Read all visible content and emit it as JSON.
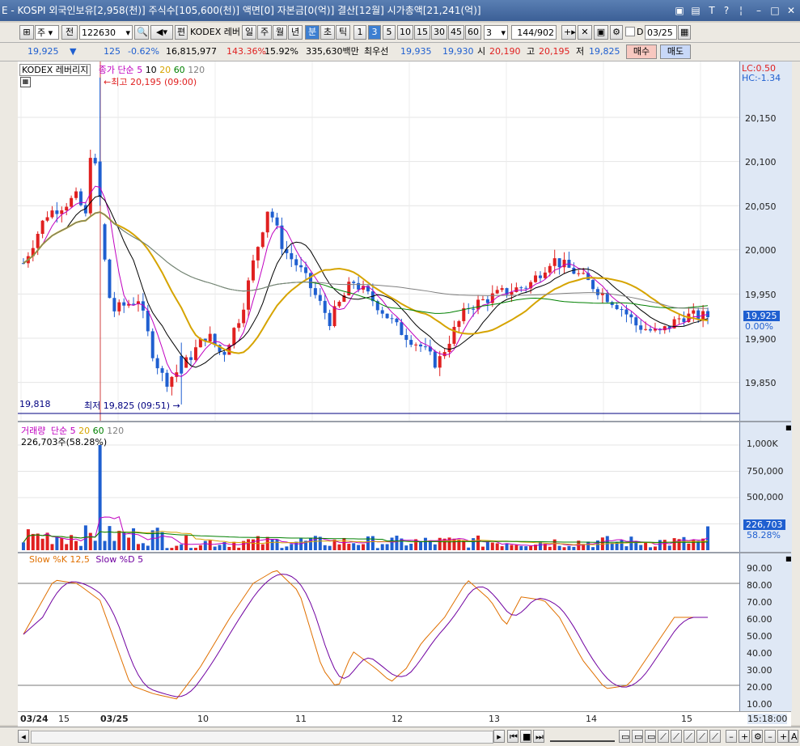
{
  "titlebar": {
    "title": "E - KOSPI 외국인보유[2,958(천)] 주식수[105,600(천)] 액면[0] 자본금[0(억)] 결산[12월] 시가총액[21,241(억)]",
    "icons": [
      "save-icon",
      "chart-icon",
      "font-icon",
      "help-icon",
      "minimize-icon",
      "restore-icon",
      "close-icon"
    ]
  },
  "toolbar": {
    "market": "주",
    "mode": "전",
    "code": "122630",
    "pen_label": "편",
    "name": "KODEX 레버",
    "periods": [
      "일",
      "주",
      "월",
      "년",
      "분",
      "초",
      "틱"
    ],
    "selected_period": "분",
    "intervals": [
      "1",
      "3",
      "5",
      "10",
      "15",
      "30",
      "45",
      "60"
    ],
    "selected_interval": "3",
    "custom_interval": "3",
    "count": "144/902",
    "date": "03/25",
    "check_label": "D"
  },
  "infobar": {
    "price": "19,925",
    "arrow": "▼",
    "change": "125",
    "change_pct": "-0.62%",
    "volume": "16,815,977",
    "vol_ratio": "143.36%",
    "turnover": "15.92%",
    "amount": "335,630백만",
    "pref_label": "최우선",
    "ask": "19,935",
    "bid": "19,930",
    "open_label": "시",
    "open": "20,190",
    "high_label": "고",
    "high": "20,195",
    "low_label": "저",
    "low": "19,825",
    "buy_label": "매수",
    "sell_label": "매도"
  },
  "price_panel": {
    "legend_name": "KODEX 레버리지",
    "legend_ma": "종가 단순",
    "ma_periods": [
      "5",
      "10",
      "20",
      "60",
      "120"
    ],
    "ma_colors": [
      "#c000c0",
      "#000000",
      "#d6a400",
      "#008000",
      "#808080"
    ],
    "lc": "LC:0.50",
    "hc": "HC:-1.34",
    "ticks": [
      "20,150",
      "20,100",
      "20,050",
      "20,000",
      "19,950",
      "19,900",
      "19,850"
    ],
    "current": "19,925",
    "current_pct": "0.00%",
    "max_label": "최고 20,195 (09:00)",
    "min_label": "최저 19,825 (09:51)",
    "min_line": "19,818"
  },
  "volume_panel": {
    "legend_name": "거래량",
    "legend_ma": "단순",
    "ma_periods": [
      "5",
      "20",
      "60",
      "120"
    ],
    "ma_colors": [
      "#c000c0",
      "#d6a400",
      "#008000",
      "#808080"
    ],
    "current_text": "226,703주(58.28%)",
    "ticks": [
      "1,000K",
      "750,000",
      "500,000"
    ],
    "current": "226,703",
    "current_pct": "58.28%"
  },
  "stoch_panel": {
    "k_label": "Slow %K 12,5",
    "d_label": "Slow %D 5",
    "k_color": "#e07000",
    "d_color": "#7000a0",
    "ticks": [
      "90.00",
      "80.00",
      "70.00",
      "60.00",
      "50.00",
      "40.00",
      "30.00",
      "20.00",
      "10.00"
    ]
  },
  "xaxis": {
    "labels": [
      "03/24",
      "15",
      "03/25",
      "10",
      "11",
      "12",
      "13",
      "14",
      "15"
    ],
    "time": "15:18:00"
  },
  "colors": {
    "up": "#e02020",
    "down": "#1f5fd0",
    "accent": "#3d7fd1"
  }
}
